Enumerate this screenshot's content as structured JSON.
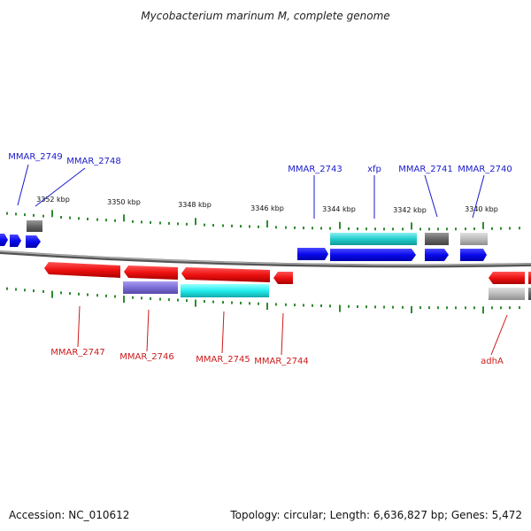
{
  "title": "Mycobacterium marinum M, complete genome",
  "footer": {
    "accession": "Accession: NC_010612",
    "summary": "Topology: circular; Length: 6,636,827 bp; Genes: 5,472"
  },
  "ticks": [
    {
      "label": "3352 kbp"
    },
    {
      "label": "3350 kbp"
    },
    {
      "label": "3348 kbp"
    },
    {
      "label": "3346 kbp"
    },
    {
      "label": "3344 kbp"
    },
    {
      "label": "3342 kbp"
    },
    {
      "label": "3340 kbp"
    }
  ],
  "colors": {
    "cds_forward": "#0a0aee",
    "cds_reverse": "#ee1111",
    "backbone": "#777777",
    "ticks": "#2e8b2e",
    "rna_cyan": "#22cccc",
    "purple": "#7b6fd6",
    "gray_dark": "#666666",
    "gray_light": "#bbbbbb",
    "label_forward": "#1a1acc",
    "label_reverse": "#cc1a1a"
  },
  "labels_forward": [
    {
      "text": "MMAR_2749"
    },
    {
      "text": "MMAR_2748"
    },
    {
      "text": "MMAR_2743"
    },
    {
      "text": "xfp"
    },
    {
      "text": "MMAR_2741"
    },
    {
      "text": "MMAR_2740"
    }
  ],
  "labels_reverse": [
    {
      "text": "MMAR_2747"
    },
    {
      "text": "MMAR_2746"
    },
    {
      "text": "MMAR_2745"
    },
    {
      "text": "MMAR_2744"
    },
    {
      "text": "adhA"
    }
  ]
}
